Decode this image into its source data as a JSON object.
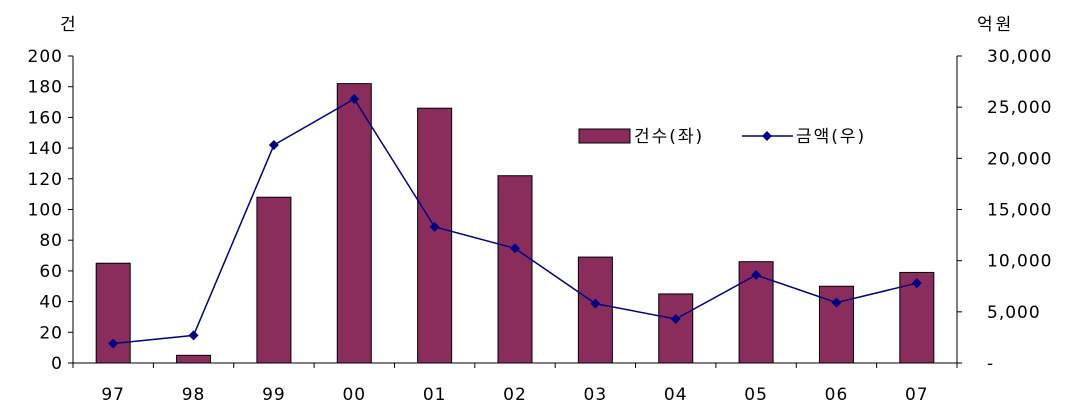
{
  "chart_data": {
    "type": "bar",
    "categories": [
      "97",
      "98",
      "99",
      "00",
      "01",
      "02",
      "03",
      "04",
      "05",
      "06",
      "07"
    ],
    "series": [
      {
        "name": "건수(좌)",
        "type": "bar",
        "axis": "left",
        "color": "#8B2D5C",
        "values": [
          65,
          5,
          108,
          182,
          166,
          122,
          69,
          45,
          66,
          50,
          59
        ]
      },
      {
        "name": "금액(우)",
        "type": "line",
        "axis": "right",
        "color": "#000080",
        "marker": "diamond",
        "values": [
          1900,
          2700,
          21300,
          25800,
          13300,
          11200,
          5800,
          4300,
          8600,
          5900,
          7800
        ]
      }
    ],
    "y_left": {
      "label": "건",
      "ylim": [
        0,
        200
      ],
      "ticks": [
        "0",
        "20",
        "40",
        "60",
        "80",
        "100",
        "120",
        "140",
        "160",
        "180",
        "200"
      ]
    },
    "y_right": {
      "label": "억원",
      "ylim": [
        0,
        30000
      ],
      "ticks": [
        "-",
        "5,000",
        "10,000",
        "15,000",
        "20,000",
        "25,000",
        "30,000"
      ]
    },
    "legend_position": "upper-right",
    "grid": false
  }
}
